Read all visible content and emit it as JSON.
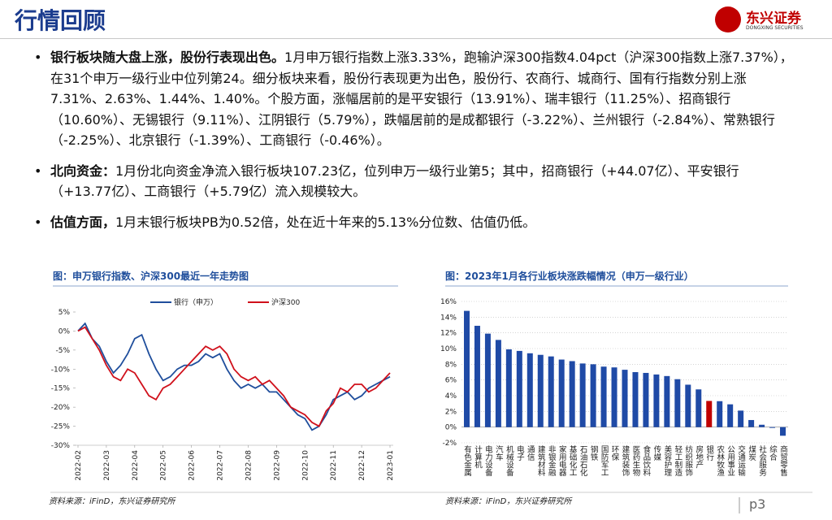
{
  "header": {
    "title": "行情回顾",
    "logo": "东兴证券",
    "logo_en": "DONGXING SECURITIES"
  },
  "bullets": [
    {
      "lead": "银行板块随大盘上涨，股份行表现出色。",
      "text": "1月申万银行指数上涨3.33%，跑输沪深300指数4.04pct（沪深300指数上涨7.37%），在31个申万一级行业中位列第24。细分板块来看，股份行表现更为出色，股份行、农商行、城商行、国有行指数分别上涨7.31%、2.63%、1.44%、1.40%。个股方面，涨幅居前的是平安银行（13.91%）、瑞丰银行（11.25%）、招商银行（10.60%）、无锡银行（9.11%）、江阴银行（5.79%），跌幅居前的是成都银行（-3.22%）、兰州银行（-2.84%）、常熟银行（-2.25%）、北京银行（-1.39%）、工商银行（-0.46%）。"
    },
    {
      "lead": "北向资金：",
      "text": "1月份北向资金净流入银行板块107.23亿，位列申万一级行业第5；其中，招商银行（+44.07亿）、平安银行（+13.77亿）、工商银行（+5.79亿）流入规模较大。"
    },
    {
      "lead": "估值方面，",
      "text": "1月末银行板块PB为0.52倍，处在近十年来的5.13%分位数、估值仍低。"
    }
  ],
  "chart_data": [
    {
      "type": "line",
      "title": "图：申万银行指数、沪深300最近一年走势图",
      "categories": [
        "2022-02",
        null,
        null,
        null,
        "2022-03",
        null,
        null,
        null,
        "2022-04",
        null,
        null,
        null,
        "2022-05",
        null,
        null,
        null,
        "2022-06",
        null,
        null,
        null,
        "2022-07",
        null,
        null,
        null,
        "2022-08",
        null,
        null,
        null,
        "2022-09",
        null,
        null,
        null,
        "2022-10",
        null,
        null,
        null,
        "2022-11",
        null,
        null,
        null,
        "2022-12",
        null,
        null,
        null,
        "2023-01"
      ],
      "series": [
        {
          "name": "银行（申万）",
          "color": "#1f4e9c",
          "values": [
            0,
            2,
            -2,
            -4,
            -8,
            -11,
            -9,
            -6,
            -2,
            -1,
            -6,
            -10,
            -13,
            -12,
            -10,
            -9,
            -9,
            -8,
            -6,
            -7,
            -6,
            -10,
            -13,
            -15,
            -14,
            -15,
            -14,
            -16,
            -16,
            -18,
            -20,
            -22,
            -23,
            -26,
            -25,
            -22,
            -18,
            -17,
            -16,
            -18,
            -17,
            -15,
            -14,
            -13,
            -12
          ]
        },
        {
          "name": "沪深300",
          "color": "#d0101b",
          "values": [
            0,
            1,
            -2,
            -5,
            -9,
            -12,
            -13,
            -10,
            -11,
            -14,
            -17,
            -18,
            -15,
            -14,
            -12,
            -10,
            -8,
            -6,
            -4,
            -5,
            -4,
            -6,
            -10,
            -12,
            -13,
            -12,
            -14,
            -13,
            -15,
            -17,
            -20,
            -21,
            -22,
            -24,
            -25,
            -21,
            -19,
            -15,
            -16,
            -14,
            -14,
            -16,
            -15,
            -13,
            -11
          ]
        }
      ],
      "ylim": [
        -30,
        5
      ],
      "yticks": [
        {
          "value": 5,
          "label": "5%"
        },
        {
          "value": 0,
          "label": "0%"
        },
        {
          "value": -5,
          "label": "-5%"
        },
        {
          "value": -10,
          "label": "-10%"
        },
        {
          "value": -15,
          "label": "-15%"
        },
        {
          "value": -20,
          "label": "-20%"
        },
        {
          "value": -25,
          "label": "-25%"
        },
        {
          "value": -30,
          "label": "-30%"
        }
      ],
      "grid": false,
      "legend": "top"
    },
    {
      "type": "bar",
      "title": "图：2023年1月各行业板块涨跌幅情况（申万一级行业）",
      "categories": [
        "有色金属",
        "计算机",
        "电力设备",
        "汽车",
        "机械设备",
        "电子",
        "通信",
        "建筑材料",
        "非银金融",
        "家用电器",
        "基础化工",
        "石油石化",
        "钢铁",
        "国防军工",
        "环保",
        "建筑装饰",
        "医药生物",
        "食品饮料",
        "传媒",
        "美容护理",
        "轻工制造",
        "纺织服饰",
        "房地产",
        "银行",
        "农林牧渔",
        "公用事业",
        "交通运输",
        "煤炭",
        "社会服务",
        "综合",
        "商贸零售"
      ],
      "values": [
        14.8,
        12.9,
        11.9,
        11.1,
        9.9,
        9.7,
        9.4,
        9.2,
        9.0,
        8.6,
        8.4,
        8.1,
        8.0,
        7.7,
        7.6,
        7.3,
        7.0,
        6.9,
        6.7,
        6.5,
        6.1,
        5.4,
        4.8,
        3.33,
        3.3,
        2.9,
        2.1,
        0.9,
        0.3,
        -0.1,
        -1.1
      ],
      "color": "#1f4aa6",
      "highlight_color": "#c00000",
      "highlight": "银行",
      "ylim": [
        -2,
        16
      ],
      "yticks": [
        {
          "value": 16,
          "label": "16%"
        },
        {
          "value": 14,
          "label": "14%"
        },
        {
          "value": 12,
          "label": "12%"
        },
        {
          "value": 10,
          "label": "10%"
        },
        {
          "value": 8,
          "label": "8%"
        },
        {
          "value": 6,
          "label": "6%"
        },
        {
          "value": 4,
          "label": "4%"
        },
        {
          "value": 2,
          "label": "2%"
        },
        {
          "value": 0,
          "label": "0%"
        },
        {
          "value": -2,
          "label": "-2%"
        }
      ],
      "grid": true
    }
  ],
  "sources": [
    "资料来源：iFinD，东兴证券研究所",
    "资料来源：iFinD，东兴证券研究所"
  ],
  "page": "p3"
}
